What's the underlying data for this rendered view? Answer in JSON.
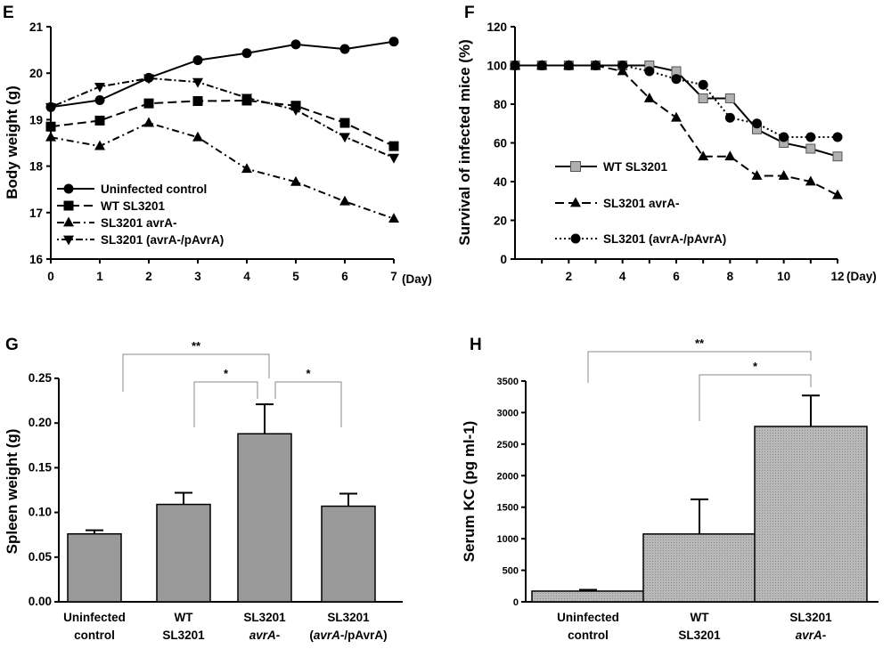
{
  "chart_data": [
    {
      "panel": "E",
      "type": "line",
      "ylabel": "Body weight (g)",
      "xunit": "(Day)",
      "ylim": [
        16,
        21
      ],
      "xlim": [
        0,
        7
      ],
      "yticks": [
        "16",
        "17",
        "18",
        "19",
        "20",
        "21"
      ],
      "xticks": [
        "0",
        "1",
        "2",
        "3",
        "4",
        "5",
        "6",
        "7"
      ],
      "x": [
        0,
        1,
        2,
        3,
        4,
        5,
        6,
        7
      ],
      "series": [
        {
          "name": "Uninfected control",
          "marker": "circle",
          "dash": "solid",
          "values": [
            19.27,
            19.42,
            19.9,
            20.28,
            20.43,
            20.62,
            20.52,
            20.68
          ]
        },
        {
          "name": "WT SL3201",
          "marker": "square",
          "dash": "longdash",
          "values": [
            18.85,
            18.98,
            19.35,
            19.4,
            19.41,
            19.3,
            18.93,
            18.43
          ]
        },
        {
          "name": "SL3201 avrA-",
          "marker": "triangle-up",
          "dash": "dashdot",
          "values": [
            18.62,
            18.43,
            18.93,
            18.62,
            17.94,
            17.66,
            17.24,
            16.87
          ]
        },
        {
          "name": "SL3201 (avrA-/pAvrA)",
          "marker": "triangle-down",
          "dash": "dotdash",
          "values": [
            19.27,
            19.71,
            19.89,
            19.81,
            19.47,
            19.21,
            18.63,
            18.18
          ]
        }
      ]
    },
    {
      "panel": "F",
      "type": "line",
      "ylabel": "Survival of infected mice (%)",
      "xunit": "(Day)",
      "ylim": [
        0,
        120
      ],
      "xlim": [
        0,
        12
      ],
      "yticks": [
        "0",
        "20",
        "40",
        "60",
        "80",
        "100",
        "120"
      ],
      "xticks": [
        "2",
        "4",
        "6",
        "8",
        "10",
        "12"
      ],
      "series": [
        {
          "name": "WT SL3201",
          "marker": "square-gray",
          "dash": "solid",
          "x": [
            0,
            1,
            2,
            3,
            4,
            5,
            6,
            7,
            8,
            9,
            10,
            11,
            12
          ],
          "values": [
            100,
            100,
            100,
            100,
            100,
            100,
            97,
            83,
            83,
            67,
            60,
            57,
            53
          ]
        },
        {
          "name": "SL3201 avrA-",
          "marker": "triangle-up",
          "dash": "longdash",
          "x": [
            0,
            1,
            2,
            3,
            4,
            5,
            6,
            7,
            8,
            9,
            10,
            11,
            12
          ],
          "values": [
            100,
            100,
            100,
            100,
            97,
            83,
            73,
            53,
            53,
            43,
            43,
            40,
            33
          ]
        },
        {
          "name": "SL3201 (avrA-/pAvrA)",
          "marker": "circle",
          "dash": "dotted",
          "x": [
            0,
            1,
            2,
            3,
            4,
            5,
            6,
            7,
            8,
            9,
            10,
            11,
            12
          ],
          "values": [
            100,
            100,
            100,
            100,
            100,
            97,
            93,
            90,
            73,
            70,
            63,
            63,
            63
          ]
        }
      ]
    },
    {
      "panel": "G",
      "type": "bar",
      "ylabel": "Spleen weight (g)",
      "ylim": [
        0,
        0.25
      ],
      "yticks": [
        "0.00",
        "0.05",
        "0.10",
        "0.15",
        "0.20",
        "0.25"
      ],
      "categories": [
        {
          "line1": "Uninfected",
          "line2": "control",
          "italic2": ""
        },
        {
          "line1": "WT",
          "line2": "SL3201",
          "italic2": ""
        },
        {
          "line1": "SL3201",
          "line2": "",
          "italic2": "avrA-"
        },
        {
          "line1": "SL3201",
          "line2": "(",
          "italic2": "avrA-",
          "line2b": "/pAvrA)"
        }
      ],
      "values": [
        0.076,
        0.109,
        0.188,
        0.107
      ],
      "errors": [
        0.004,
        0.013,
        0.033,
        0.014
      ],
      "significance": [
        {
          "from": 0,
          "to": 2,
          "label": "**"
        },
        {
          "from": 1,
          "to": 2,
          "label": "*"
        },
        {
          "from": 2,
          "to": 3,
          "label": "*"
        }
      ]
    },
    {
      "panel": "H",
      "type": "bar",
      "ylabel": "Serum KC (pg ml-1)",
      "ylim": [
        0,
        3500
      ],
      "yticks": [
        "0",
        "500",
        "1000",
        "1500",
        "2000",
        "2500",
        "3000",
        "3500"
      ],
      "categories": [
        {
          "line1": "Uninfected",
          "line2": "control",
          "italic2": ""
        },
        {
          "line1": "WT",
          "line2": "SL3201",
          "italic2": ""
        },
        {
          "line1": "SL3201",
          "line2": "",
          "italic2": "avrA-"
        }
      ],
      "values": [
        170,
        1075,
        2780
      ],
      "errors": [
        20,
        550,
        490
      ],
      "significance": [
        {
          "from": 0,
          "to": 2,
          "label": "**"
        },
        {
          "from": 1,
          "to": 2,
          "label": "*"
        }
      ]
    }
  ]
}
